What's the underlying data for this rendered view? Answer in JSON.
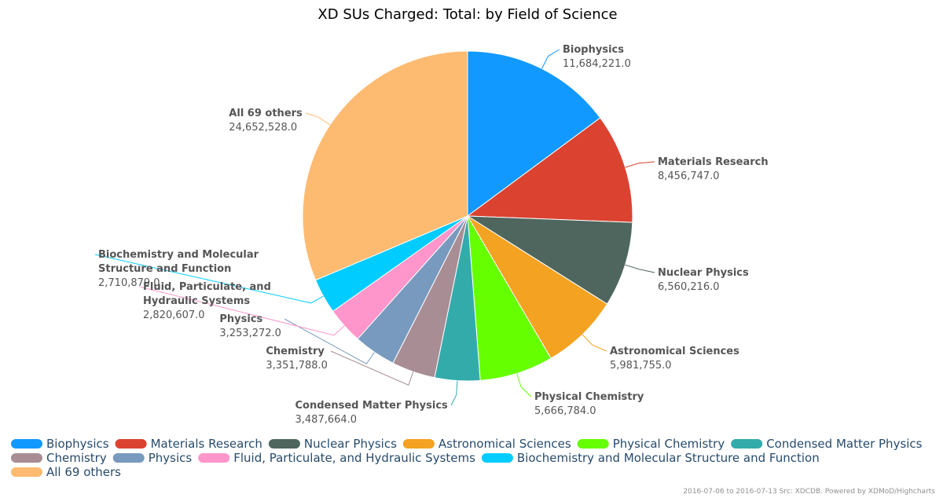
{
  "chart_data": {
    "type": "pie",
    "title": "XD SUs Charged: Total: by Field of Science",
    "slices": [
      {
        "name": "Biophysics",
        "value": 11684221.0,
        "value_label": "11,684,221.0",
        "color": "#1199ff"
      },
      {
        "name": "Materials Research",
        "value": 8456747.0,
        "value_label": "8,456,747.0",
        "color": "#db4230"
      },
      {
        "name": "Nuclear Physics",
        "value": 6560216.0,
        "value_label": "6,560,216.0",
        "color": "#4e665d"
      },
      {
        "name": "Astronomical Sciences",
        "value": 5981755.0,
        "value_label": "5,981,755.0",
        "color": "#f4a221"
      },
      {
        "name": "Physical Chemistry",
        "value": 5666784.0,
        "value_label": "5,666,784.0",
        "color": "#66ff00"
      },
      {
        "name": "Condensed Matter Physics",
        "value": 3487664.0,
        "value_label": "3,487,664.0",
        "color": "#33abab"
      },
      {
        "name": "Chemistry",
        "value": 3351788.0,
        "value_label": "3,351,788.0",
        "color": "#a88d95"
      },
      {
        "name": "Physics",
        "value": 3253272.0,
        "value_label": "3,253,272.0",
        "color": "#789abe"
      },
      {
        "name": "Fluid, Particulate, and Hydraulic Systems",
        "value": 2820607.0,
        "value_label": "2,820,607.0",
        "color": "#fe96cb",
        "label_lines": [
          "Fluid, Particulate, and",
          "Hydraulic Systems"
        ]
      },
      {
        "name": "Biochemistry and Molecular Structure and Function",
        "value": 2710879.0,
        "value_label": "2,710,879.0",
        "color": "#01ccff",
        "label_lines": [
          "Biochemistry and Molecular",
          "Structure and Function"
        ]
      },
      {
        "name": "All 69 others",
        "value": 24652528.0,
        "value_label": "24,652,528.0",
        "color": "#fdbb71"
      }
    ],
    "legend_position": "bottom-left"
  },
  "credits": "2016-07-06 to 2016-07-13 Src: XDCDB. Powered by XDMoD/Highcharts"
}
